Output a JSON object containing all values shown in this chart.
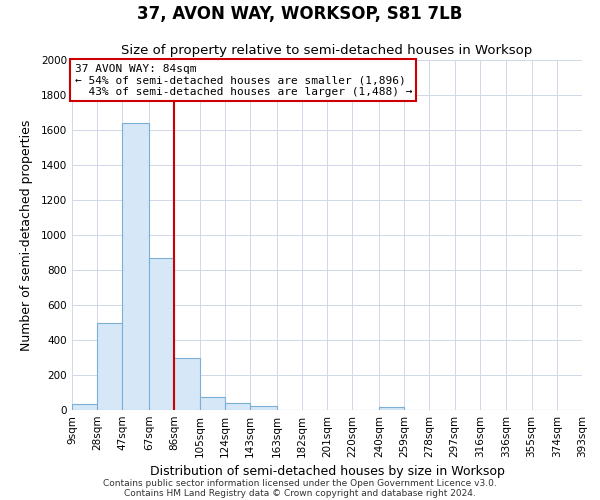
{
  "title": "37, AVON WAY, WORKSOP, S81 7LB",
  "subtitle": "Size of property relative to semi-detached houses in Worksop",
  "xlabel": "Distribution of semi-detached houses by size in Worksop",
  "ylabel": "Number of semi-detached properties",
  "bin_edges": [
    9,
    28,
    47,
    67,
    86,
    105,
    124,
    143,
    163,
    182,
    201,
    220,
    240,
    259,
    278,
    297,
    316,
    336,
    355,
    374,
    393
  ],
  "bin_labels": [
    "9sqm",
    "28sqm",
    "47sqm",
    "67sqm",
    "86sqm",
    "105sqm",
    "124sqm",
    "143sqm",
    "163sqm",
    "182sqm",
    "201sqm",
    "220sqm",
    "240sqm",
    "259sqm",
    "278sqm",
    "297sqm",
    "316sqm",
    "336sqm",
    "355sqm",
    "374sqm",
    "393sqm"
  ],
  "bar_heights": [
    35,
    500,
    1640,
    870,
    300,
    75,
    40,
    25,
    0,
    0,
    0,
    0,
    15,
    0,
    0,
    0,
    0,
    0,
    0,
    0
  ],
  "bar_color": "#d6e8f7",
  "bar_edge_color": "#7bafd4",
  "property_line_x": 86,
  "property_line_color": "#cc0000",
  "annotation_text": "37 AVON WAY: 84sqm\n← 54% of semi-detached houses are smaller (1,896)\n  43% of semi-detached houses are larger (1,488) →",
  "annotation_box_color": "#ffffff",
  "annotation_box_edge": "#cc0000",
  "ylim": [
    0,
    2000
  ],
  "yticks": [
    0,
    200,
    400,
    600,
    800,
    1000,
    1200,
    1400,
    1600,
    1800,
    2000
  ],
  "footer_line1": "Contains HM Land Registry data © Crown copyright and database right 2024.",
  "footer_line2": "Contains public sector information licensed under the Open Government Licence v3.0.",
  "title_fontsize": 12,
  "subtitle_fontsize": 9.5,
  "label_fontsize": 9,
  "tick_fontsize": 7.5,
  "footer_fontsize": 6.5,
  "grid_color": "#d0d8e8"
}
